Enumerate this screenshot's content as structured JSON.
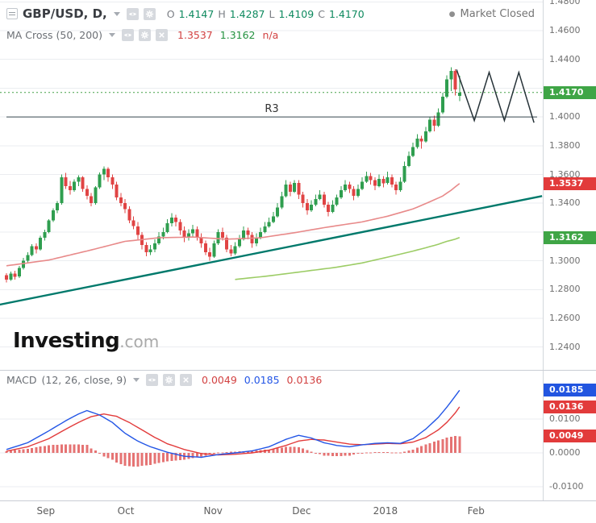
{
  "header": {
    "symbol_legend": {
      "title": "GBP/USD, D,",
      "ohlc": {
        "o_label": "O",
        "o_value": "1.4147",
        "h_label": "H",
        "h_value": "1.4287",
        "l_label": "L",
        "l_value": "1.4109",
        "c_label": "C",
        "c_value": "1.4170"
      }
    },
    "market_status": {
      "dot": "●",
      "text": "Market Closed"
    },
    "ma_legend": {
      "title": "MA Cross (50, 200)",
      "ma50_value": "1.3537",
      "ma200_value": "1.3162",
      "third_value": "n/a"
    }
  },
  "macd_legend": {
    "title": "MACD",
    "params": "(12, 26, close, 9)",
    "hist_value": "0.0049",
    "macd_value": "0.0185",
    "signal_value": "0.0136"
  },
  "watermark": {
    "brand": "Investing",
    "suffix": ".com"
  },
  "icons": {
    "collapse": "panel-collapse-icon",
    "dropdown": "chevron-down-icon",
    "visibility": "eye-icon",
    "settings": "gear-icon",
    "remove": "close-icon",
    "status": "status-dot-icon"
  },
  "colors": {
    "badge_green": "#3fa546",
    "badge_red": "#e23b3b",
    "badge_blue": "#2255e0",
    "up": "#2f9e4f",
    "down": "#e04444",
    "trendline": "#00796b"
  },
  "axis": {
    "price_ticks": [
      "1.4800",
      "1.4600",
      "1.4400",
      "1.4000",
      "1.3800",
      "1.3600",
      "1.3400",
      "1.3000",
      "1.2800",
      "1.2600",
      "1.2400"
    ],
    "price_badges": [
      {
        "text": "1.4170",
        "color": "#3fa546"
      },
      {
        "text": "1.3537",
        "color": "#e23b3b"
      },
      {
        "text": "1.3162",
        "color": "#3fa546"
      }
    ],
    "macd_ticks": [
      "0.0100",
      "0.0000",
      "-0.0100"
    ],
    "macd_badges": [
      {
        "text": "0.0185",
        "color": "#2255e0"
      },
      {
        "text": "0.0136",
        "color": "#e23b3b"
      },
      {
        "text": "0.0049",
        "color": "#e23b3b"
      }
    ]
  },
  "chart_data": [
    {
      "type": "candlestick",
      "symbol": "GBP/USD",
      "interval": "D",
      "ylim": [
        1.2247,
        1.4813
      ],
      "y_grid": [
        1.48,
        1.46,
        1.44,
        1.42,
        1.4,
        1.38,
        1.36,
        1.34,
        1.32,
        1.3,
        1.28,
        1.26,
        1.24
      ],
      "x_ticks": [
        {
          "label": "Sep",
          "i": 9.3
        },
        {
          "label": "Oct",
          "i": 28.2
        },
        {
          "label": "Nov",
          "i": 48.8
        },
        {
          "label": "Dec",
          "i": 69.7
        },
        {
          "label": "2018",
          "i": 89.5
        },
        {
          "label": "Feb",
          "i": 110.9
        }
      ],
      "up_color": "#2f9e4f",
      "down_color": "#e04444",
      "candles": [
        [
          1.29,
          1.2915,
          1.285,
          1.287
        ],
        [
          1.287,
          1.2925,
          1.286,
          1.291
        ],
        [
          1.291,
          1.293,
          1.287,
          1.289
        ],
        [
          1.289,
          1.2965,
          1.288,
          1.295
        ],
        [
          1.295,
          1.302,
          1.294,
          1.3
        ],
        [
          1.3,
          1.306,
          1.298,
          1.304
        ],
        [
          1.304,
          1.3115,
          1.303,
          1.31
        ],
        [
          1.31,
          1.312,
          1.305,
          1.308
        ],
        [
          1.308,
          1.3175,
          1.307,
          1.316
        ],
        [
          1.316,
          1.3215,
          1.314,
          1.32
        ],
        [
          1.32,
          1.329,
          1.319,
          1.328
        ],
        [
          1.328,
          1.3365,
          1.327,
          1.335
        ],
        [
          1.335,
          1.3415,
          1.333,
          1.34
        ],
        [
          1.34,
          1.36,
          1.339,
          1.358
        ],
        [
          1.358,
          1.361,
          1.35,
          1.352
        ],
        [
          1.352,
          1.3555,
          1.346,
          1.349
        ],
        [
          1.349,
          1.3565,
          1.348,
          1.355
        ],
        [
          1.355,
          1.3595,
          1.352,
          1.358
        ],
        [
          1.358,
          1.359,
          1.348,
          1.35
        ],
        [
          1.35,
          1.3525,
          1.3425,
          1.345
        ],
        [
          1.345,
          1.347,
          1.338,
          1.34
        ],
        [
          1.34,
          1.352,
          1.339,
          1.351
        ],
        [
          1.351,
          1.3615,
          1.35,
          1.36
        ],
        [
          1.36,
          1.3655,
          1.356,
          1.364
        ],
        [
          1.364,
          1.365,
          1.355,
          1.358
        ],
        [
          1.358,
          1.36,
          1.35,
          1.353
        ],
        [
          1.353,
          1.355,
          1.342,
          1.344
        ],
        [
          1.344,
          1.347,
          1.338,
          1.34
        ],
        [
          1.34,
          1.343,
          1.333,
          1.336
        ],
        [
          1.336,
          1.338,
          1.326,
          1.328
        ],
        [
          1.328,
          1.331,
          1.322,
          1.324
        ],
        [
          1.324,
          1.327,
          1.315,
          1.318
        ],
        [
          1.318,
          1.32,
          1.308,
          1.311
        ],
        [
          1.311,
          1.313,
          1.303,
          1.306
        ],
        [
          1.306,
          1.311,
          1.304,
          1.308
        ],
        [
          1.308,
          1.315,
          1.306,
          1.312
        ],
        [
          1.312,
          1.32,
          1.311,
          1.317
        ],
        [
          1.317,
          1.323,
          1.315,
          1.32
        ],
        [
          1.32,
          1.329,
          1.319,
          1.326
        ],
        [
          1.326,
          1.333,
          1.324,
          1.33
        ],
        [
          1.33,
          1.332,
          1.324,
          1.327
        ],
        [
          1.327,
          1.329,
          1.318,
          1.321
        ],
        [
          1.321,
          1.324,
          1.313,
          1.316
        ],
        [
          1.316,
          1.322,
          1.314,
          1.319
        ],
        [
          1.319,
          1.325,
          1.317,
          1.322
        ],
        [
          1.322,
          1.324,
          1.314,
          1.316
        ],
        [
          1.316,
          1.319,
          1.309,
          1.312
        ],
        [
          1.312,
          1.314,
          1.304,
          1.306
        ],
        [
          1.306,
          1.309,
          1.3,
          1.303
        ],
        [
          1.303,
          1.314,
          1.302,
          1.312
        ],
        [
          1.312,
          1.322,
          1.311,
          1.32
        ],
        [
          1.32,
          1.323,
          1.314,
          1.316
        ],
        [
          1.316,
          1.318,
          1.306,
          1.308
        ],
        [
          1.308,
          1.311,
          1.303,
          1.305
        ],
        [
          1.305,
          1.313,
          1.304,
          1.31
        ],
        [
          1.31,
          1.318,
          1.309,
          1.315
        ],
        [
          1.315,
          1.324,
          1.314,
          1.321
        ],
        [
          1.321,
          1.323,
          1.315,
          1.318
        ],
        [
          1.318,
          1.32,
          1.309,
          1.312
        ],
        [
          1.312,
          1.319,
          1.31,
          1.316
        ],
        [
          1.316,
          1.323,
          1.315,
          1.32
        ],
        [
          1.32,
          1.327,
          1.319,
          1.324
        ],
        [
          1.324,
          1.33,
          1.323,
          1.327
        ],
        [
          1.327,
          1.334,
          1.326,
          1.331
        ],
        [
          1.331,
          1.34,
          1.33,
          1.337
        ],
        [
          1.337,
          1.348,
          1.336,
          1.345
        ],
        [
          1.345,
          1.356,
          1.344,
          1.353
        ],
        [
          1.353,
          1.355,
          1.345,
          1.348
        ],
        [
          1.348,
          1.356,
          1.347,
          1.354
        ],
        [
          1.354,
          1.356,
          1.343,
          1.346
        ],
        [
          1.346,
          1.348,
          1.337,
          1.34
        ],
        [
          1.34,
          1.343,
          1.332,
          1.335
        ],
        [
          1.335,
          1.342,
          1.334,
          1.339
        ],
        [
          1.339,
          1.346,
          1.338,
          1.343
        ],
        [
          1.343,
          1.349,
          1.342,
          1.346
        ],
        [
          1.346,
          1.348,
          1.337,
          1.339
        ],
        [
          1.339,
          1.341,
          1.331,
          1.334
        ],
        [
          1.334,
          1.342,
          1.333,
          1.339
        ],
        [
          1.339,
          1.346,
          1.338,
          1.344
        ],
        [
          1.344,
          1.352,
          1.343,
          1.349
        ],
        [
          1.349,
          1.356,
          1.348,
          1.353
        ],
        [
          1.353,
          1.355,
          1.347,
          1.35
        ],
        [
          1.35,
          1.352,
          1.342,
          1.345
        ],
        [
          1.345,
          1.353,
          1.344,
          1.35
        ],
        [
          1.35,
          1.358,
          1.349,
          1.355
        ],
        [
          1.355,
          1.362,
          1.354,
          1.359
        ],
        [
          1.359,
          1.361,
          1.353,
          1.356
        ],
        [
          1.356,
          1.358,
          1.349,
          1.352
        ],
        [
          1.352,
          1.36,
          1.351,
          1.357
        ],
        [
          1.357,
          1.359,
          1.351,
          1.354
        ],
        [
          1.354,
          1.362,
          1.353,
          1.358
        ],
        [
          1.358,
          1.36,
          1.351,
          1.353
        ],
        [
          1.353,
          1.355,
          1.346,
          1.349
        ],
        [
          1.349,
          1.358,
          1.348,
          1.355
        ],
        [
          1.355,
          1.369,
          1.354,
          1.366
        ],
        [
          1.366,
          1.376,
          1.365,
          1.373
        ],
        [
          1.373,
          1.382,
          1.372,
          1.379
        ],
        [
          1.379,
          1.388,
          1.378,
          1.385
        ],
        [
          1.385,
          1.387,
          1.378,
          1.383
        ],
        [
          1.383,
          1.393,
          1.382,
          1.39
        ],
        [
          1.39,
          1.4,
          1.389,
          1.398
        ],
        [
          1.398,
          1.401,
          1.39,
          1.394
        ],
        [
          1.394,
          1.406,
          1.393,
          1.403
        ],
        [
          1.403,
          1.417,
          1.402,
          1.414
        ],
        [
          1.414,
          1.429,
          1.413,
          1.426
        ],
        [
          1.426,
          1.4345,
          1.418,
          1.432
        ],
        [
          1.432,
          1.433,
          1.415,
          1.419
        ],
        [
          1.4147,
          1.4287,
          1.4109,
          1.417
        ]
      ],
      "overlays": {
        "ma50": {
          "label": "MA 50",
          "color": "#e88a8a",
          "points": [
            [
              0,
              1.2965
            ],
            [
              10,
              1.3005
            ],
            [
              20,
              1.3075
            ],
            [
              28,
              1.3135
            ],
            [
              36,
              1.316
            ],
            [
              44,
              1.3165
            ],
            [
              52,
              1.315
            ],
            [
              60,
              1.316
            ],
            [
              68,
              1.3195
            ],
            [
              76,
              1.3235
            ],
            [
              84,
              1.327
            ],
            [
              90,
              1.331
            ],
            [
              96,
              1.336
            ],
            [
              100,
              1.341
            ],
            [
              103,
              1.345
            ],
            [
              105,
              1.349
            ],
            [
              107,
              1.3537
            ]
          ]
        },
        "ma200": {
          "label": "MA 200",
          "color": "#9ccc65",
          "points": [
            [
              54,
              1.287
            ],
            [
              62,
              1.2895
            ],
            [
              70,
              1.2925
            ],
            [
              78,
              1.2955
            ],
            [
              84,
              1.2985
            ],
            [
              90,
              1.3025
            ],
            [
              95,
              1.306
            ],
            [
              99,
              1.309
            ],
            [
              102,
              1.3115
            ],
            [
              104,
              1.3135
            ],
            [
              106,
              1.315
            ],
            [
              107,
              1.3162
            ]
          ]
        },
        "trendline": {
          "color": "#00796b",
          "from": [
            -1.6,
            1.2695
          ],
          "to": [
            126.5,
            1.345
          ]
        },
        "resistance_line": {
          "label": "R3",
          "price": 1.4,
          "color": "#37474f"
        },
        "last_price_line": {
          "price": 1.417,
          "color": "#43a047",
          "style": "dotted"
        },
        "zigzag_drawing": {
          "color": "#263238",
          "points": [
            [
              106.3,
              1.433
            ],
            [
              110.5,
              1.3975
            ],
            [
              114.0,
              1.431
            ],
            [
              117.6,
              1.3975
            ],
            [
              121.0,
              1.431
            ],
            [
              124.6,
              1.396
            ]
          ]
        }
      }
    },
    {
      "type": "macd",
      "title": "MACD (12, 26, close, 9)",
      "ylim": [
        -0.0133,
        0.0238
      ],
      "y_ticks": [
        0.01,
        0,
        -0.01
      ],
      "colors": {
        "macd": "#2356e6",
        "signal": "#e23b3b",
        "histogram": "#e57373"
      },
      "current": {
        "histogram": 0.0049,
        "macd": 0.0185,
        "signal": 0.0136
      },
      "macd_points": [
        [
          0,
          0.001
        ],
        [
          5,
          0.003
        ],
        [
          10,
          0.0065
        ],
        [
          14,
          0.0095
        ],
        [
          17,
          0.0115
        ],
        [
          19,
          0.0125
        ],
        [
          22,
          0.0112
        ],
        [
          25,
          0.009
        ],
        [
          28,
          0.0058
        ],
        [
          31,
          0.0035
        ],
        [
          34,
          0.0018
        ],
        [
          38,
          0.0002
        ],
        [
          42,
          -0.001
        ],
        [
          46,
          -0.0013
        ],
        [
          50,
          -0.0005
        ],
        [
          54,
          0.0
        ],
        [
          58,
          0.0006
        ],
        [
          62,
          0.0018
        ],
        [
          66,
          0.004
        ],
        [
          69,
          0.0052
        ],
        [
          72,
          0.0044
        ],
        [
          75,
          0.003
        ],
        [
          78,
          0.0022
        ],
        [
          81,
          0.0018
        ],
        [
          84,
          0.0024
        ],
        [
          87,
          0.0028
        ],
        [
          90,
          0.003
        ],
        [
          93,
          0.0028
        ],
        [
          96,
          0.0042
        ],
        [
          99,
          0.007
        ],
        [
          102,
          0.0105
        ],
        [
          104,
          0.0135
        ],
        [
          106,
          0.0168
        ],
        [
          107,
          0.0185
        ]
      ],
      "signal_points": [
        [
          0,
          0.0005
        ],
        [
          5,
          0.0018
        ],
        [
          10,
          0.0042
        ],
        [
          14,
          0.007
        ],
        [
          17,
          0.009
        ],
        [
          20,
          0.0107
        ],
        [
          23,
          0.0115
        ],
        [
          26,
          0.0108
        ],
        [
          29,
          0.009
        ],
        [
          32,
          0.0068
        ],
        [
          35,
          0.0046
        ],
        [
          38,
          0.0027
        ],
        [
          42,
          0.001
        ],
        [
          46,
          -0.0002
        ],
        [
          50,
          -0.0006
        ],
        [
          54,
          -0.0004
        ],
        [
          58,
          0.0
        ],
        [
          62,
          0.0008
        ],
        [
          66,
          0.0022
        ],
        [
          69,
          0.0035
        ],
        [
          72,
          0.004
        ],
        [
          75,
          0.0038
        ],
        [
          78,
          0.0032
        ],
        [
          81,
          0.0026
        ],
        [
          84,
          0.0024
        ],
        [
          87,
          0.0026
        ],
        [
          90,
          0.0028
        ],
        [
          93,
          0.0027
        ],
        [
          96,
          0.0032
        ],
        [
          99,
          0.0045
        ],
        [
          102,
          0.0068
        ],
        [
          104,
          0.009
        ],
        [
          106,
          0.0118
        ],
        [
          107,
          0.0136
        ]
      ]
    }
  ]
}
